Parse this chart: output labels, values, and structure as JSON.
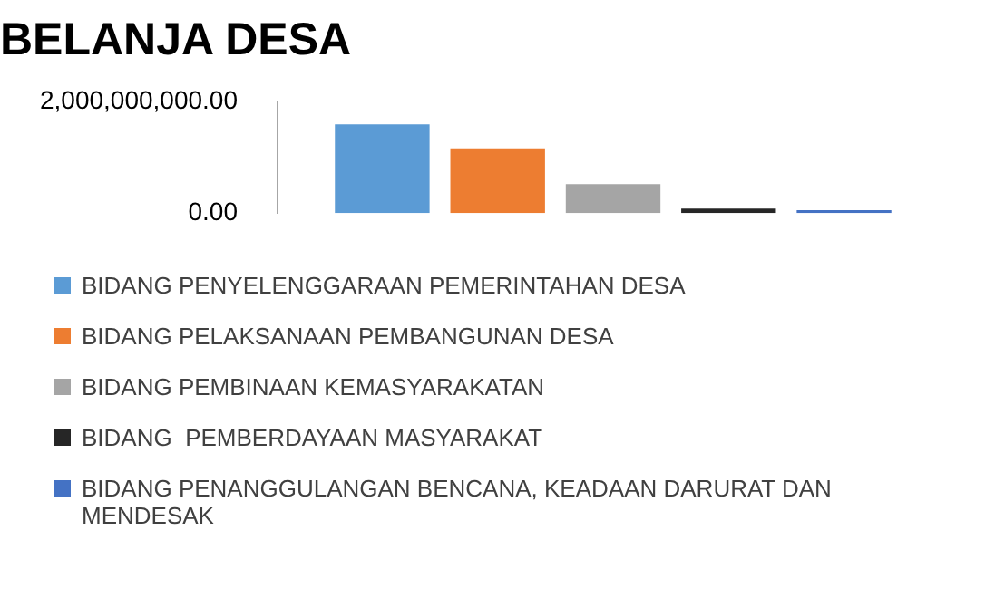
{
  "chart_data": {
    "type": "bar",
    "title": "BELANJA DESA",
    "categories": [
      null
    ],
    "series": [
      {
        "name": "BIDANG PENYELENGGARAAN PEMERINTAHAN DESA",
        "color": "#5b9bd5",
        "values": [
          1590000000
        ]
      },
      {
        "name": "BIDANG PELAKSANAAN PEMBANGUNAN DESA",
        "color": "#ed7d31",
        "values": [
          1160000000
        ]
      },
      {
        "name": "BIDANG PEMBINAAN KEMASYARAKATAN",
        "color": "#a5a5a5",
        "values": [
          520000000
        ]
      },
      {
        "name": "BIDANG  PEMBERDAYAAN MASYARAKAT",
        "color": "#262626",
        "values": [
          80000000
        ]
      },
      {
        "name": "BIDANG PENANGGULANGAN BENCANA, KEADAAN DARURAT DAN MENDESAK",
        "color": "#4472c4",
        "values": [
          50000000
        ]
      }
    ],
    "ylim": [
      0,
      2000000000
    ],
    "yticks": [
      {
        "value": 0,
        "label": "0.00"
      },
      {
        "value": 2000000000,
        "label": "2,000,000,000.00"
      }
    ],
    "grid": false,
    "legend": "bottom",
    "tick_labels": "y"
  }
}
